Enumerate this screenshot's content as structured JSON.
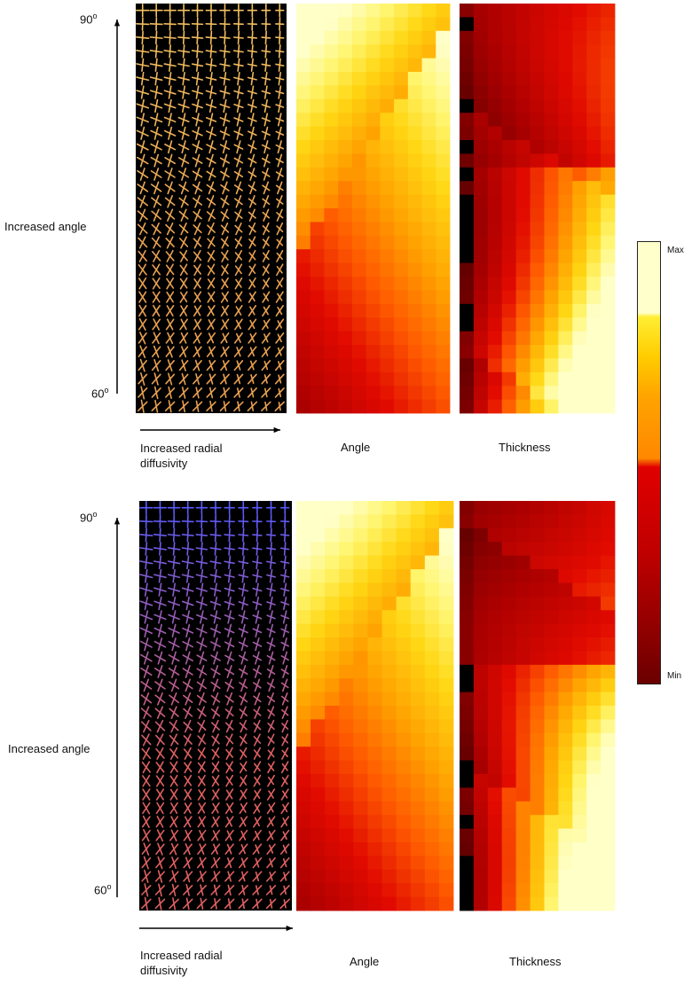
{
  "panels": [
    {
      "angle_top": "90",
      "angle_bottom": "60",
      "degree_symbol": "o",
      "y_axis_label": "Increased angle",
      "x_axis_label": "Increased radial diffusivity",
      "map_titles": [
        "Angle",
        "Thickness"
      ],
      "glyph_color_top": "#f2c060",
      "glyph_color_bottom": "#e8a050"
    },
    {
      "angle_top": "90",
      "angle_bottom": "60",
      "degree_symbol": "o",
      "y_axis_label": "Increased angle",
      "x_axis_label": "Increased radial diffusivity",
      "map_titles": [
        "Angle",
        "Thickness"
      ],
      "glyph_color_top": "#5a5aff",
      "glyph_color_bottom": "#e06060"
    }
  ],
  "colorbar": {
    "max_label": "Max",
    "min_label": "Min",
    "colormap": "hot"
  }
}
